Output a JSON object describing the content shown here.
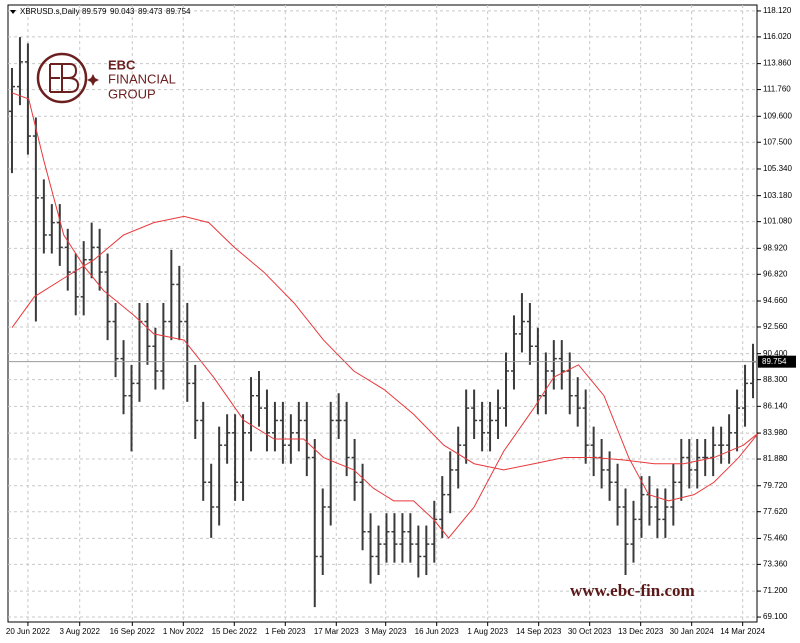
{
  "chart_data": {
    "type": "ohlc",
    "title": "XBRUSD.s,Daily",
    "header_values": [
      89.579,
      90.043,
      89.473,
      89.754
    ],
    "bar_color": "#3a3a3a",
    "open": [
      110,
      112,
      114,
      108,
      103,
      100,
      101,
      99,
      97,
      95,
      98,
      99,
      97,
      93,
      90,
      87,
      88,
      93,
      91,
      89,
      93,
      96,
      93,
      88,
      85,
      80,
      78,
      83,
      84,
      80,
      84,
      87,
      86,
      84,
      85,
      83,
      84,
      85,
      82,
      74,
      78,
      85,
      85,
      82,
      80,
      76,
      74,
      75,
      76,
      75,
      76,
      75,
      74,
      75,
      77,
      79,
      81,
      83,
      86,
      85,
      84,
      85,
      86,
      89,
      92,
      93,
      91,
      87,
      89,
      90,
      89,
      87,
      86,
      83,
      82,
      81,
      80,
      78,
      75,
      77,
      79,
      78,
      77,
      78,
      80,
      82,
      81,
      82,
      82,
      83,
      83,
      84,
      86,
      88
    ],
    "high": [
      113.5,
      116,
      115.5,
      109.5,
      104.5,
      102.5,
      102.5,
      100.5,
      98.5,
      99.5,
      101,
      100.5,
      98.5,
      94.5,
      91.5,
      89.5,
      94.5,
      94.5,
      92.5,
      94.5,
      98.8,
      97.5,
      94.5,
      89.5,
      86.5,
      81.5,
      84.5,
      85.5,
      85.5,
      85.5,
      88.5,
      89,
      87.5,
      86.5,
      86.5,
      85.5,
      86.5,
      86.5,
      83.5,
      79.5,
      86.5,
      87.2,
      86.5,
      83.5,
      81.5,
      77.5,
      76.5,
      77.5,
      77.5,
      77.5,
      77.5,
      76.5,
      76.5,
      78.5,
      80.5,
      82.5,
      84.5,
      87.5,
      87.5,
      86.5,
      86.5,
      87.5,
      90.5,
      93.5,
      95.3,
      94.5,
      92.5,
      90.5,
      91.5,
      91.5,
      90.5,
      88.5,
      87.5,
      84.5,
      83.5,
      82.5,
      81.5,
      79.5,
      78.5,
      80.5,
      80.5,
      79.5,
      79.5,
      81.5,
      83.5,
      83.5,
      83.5,
      83.5,
      84.5,
      84.5,
      85.5,
      87.5,
      89.5,
      91.2
    ],
    "low": [
      105,
      110.5,
      106.5,
      93,
      98.5,
      98.5,
      97.5,
      95.5,
      93.5,
      93.5,
      96.5,
      95.5,
      91.5,
      88.5,
      85.5,
      82.5,
      86.5,
      89.5,
      87.5,
      87.5,
      91.5,
      91.5,
      86.5,
      83.5,
      78.5,
      75.5,
      76.5,
      81.5,
      78.5,
      78.5,
      82.5,
      84.5,
      82.5,
      82.5,
      81.5,
      81.5,
      82.5,
      80.5,
      69.9,
      72.5,
      76.5,
      83.5,
      80.5,
      78.5,
      74.5,
      71.8,
      72.5,
      73.5,
      73.5,
      73.5,
      73.5,
      72.3,
      72.5,
      73.5,
      75.5,
      77.5,
      79.5,
      81.5,
      83.5,
      82.5,
      82.5,
      83.5,
      84.5,
      87.5,
      90.5,
      89.5,
      85.5,
      85.5,
      87.5,
      87.5,
      85.5,
      84.5,
      81.5,
      80.5,
      79.5,
      78.5,
      76.5,
      72.5,
      73.5,
      75.5,
      76.5,
      75.5,
      75.5,
      76.5,
      78.5,
      79.5,
      79.5,
      80.5,
      80.5,
      81.5,
      81.5,
      82.5,
      84.5,
      86.8
    ],
    "close": [
      112,
      114,
      108,
      103,
      100,
      101,
      99,
      97,
      95,
      98,
      99,
      97,
      93,
      90,
      87,
      88,
      93,
      91,
      89,
      93,
      96,
      93,
      88,
      85,
      80,
      78,
      83,
      84,
      80,
      84,
      87,
      86,
      84,
      85,
      83,
      84,
      85,
      82,
      74,
      78,
      85,
      85,
      82,
      80,
      76,
      74,
      75,
      76,
      75,
      76,
      75,
      74,
      75,
      77,
      79,
      81,
      83,
      86,
      85,
      84,
      85,
      86,
      89,
      92,
      93,
      91,
      87,
      89,
      90,
      89,
      87,
      86,
      83,
      82,
      81,
      80,
      78,
      75,
      77,
      79,
      78,
      77,
      78,
      80,
      82,
      81,
      82,
      82,
      83,
      83,
      84,
      86,
      88,
      89.754
    ],
    "moving_averages": [
      {
        "color": "#e8393c",
        "x": [
          0,
          2.1,
          4,
          6.5,
          9,
          11.5,
          15.3,
          17.8,
          21.6,
          25.3,
          29.1,
          32.9,
          36.6,
          39.1,
          42.9,
          45.4,
          47.9,
          50.4,
          52.9,
          54.8,
          58,
          61.7,
          65.5,
          68,
          71.1,
          74.3,
          77.4,
          79.9,
          82.4,
          85.6,
          88.1,
          91.2,
          93.7
        ],
        "values": [
          111.5,
          111,
          106,
          100,
          97.5,
          95.5,
          93.5,
          92,
          91.5,
          88.5,
          85,
          83.5,
          83.5,
          82,
          81,
          79.5,
          78.5,
          78.5,
          77,
          75.5,
          78,
          82.5,
          86,
          88.5,
          89.5,
          87,
          82,
          79,
          78.5,
          79,
          80,
          82,
          84
        ]
      },
      {
        "color": "#e8393c",
        "x": [
          0,
          2.8,
          6.5,
          10.3,
          14,
          17.8,
          21.6,
          24.7,
          27.9,
          31.6,
          35.4,
          39.1,
          42.9,
          46.7,
          50.4,
          54.2,
          58,
          61.7,
          65.5,
          69.3,
          73,
          76.8,
          80.6,
          84.3,
          88.1,
          91.8,
          93.7
        ],
        "values": [
          92.5,
          95,
          96.5,
          98,
          100,
          101,
          101.5,
          101,
          99,
          97,
          94.5,
          91.5,
          89,
          87.5,
          85.5,
          83,
          81.5,
          81,
          81.5,
          82,
          82,
          81.8,
          81.5,
          81.5,
          82,
          83,
          84
        ]
      }
    ],
    "xlim": [
      0,
      94
    ],
    "xticks": [
      {
        "value": 2.5,
        "label": "20 Jun 2022"
      },
      {
        "value": 9.0,
        "label": "3 Aug 2022"
      },
      {
        "value": 15.6,
        "label": "16 Sep 2022"
      },
      {
        "value": 22.0,
        "label": "1 Nov 2022"
      },
      {
        "value": 28.4,
        "label": "15 Dec 2022"
      },
      {
        "value": 34.8,
        "label": "1 Feb 2023"
      },
      {
        "value": 41.2,
        "label": "17 Mar 2023"
      },
      {
        "value": 47.4,
        "label": "3 May 2023"
      },
      {
        "value": 53.8,
        "label": "16 Jun 2023"
      },
      {
        "value": 60.2,
        "label": "1 Aug 2023"
      },
      {
        "value": 66.6,
        "label": "14 Sep 2023"
      },
      {
        "value": 73.0,
        "label": "30 Oct 2023"
      },
      {
        "value": 79.4,
        "label": "13 Dec 2023"
      },
      {
        "value": 85.8,
        "label": "30 Jan 2024"
      },
      {
        "value": 92.2,
        "label": "14 Mar 2024"
      }
    ],
    "ylim": [
      68.7,
      118.6
    ],
    "yticks": [
      {
        "value": 118.12,
        "label": "118.120"
      },
      {
        "value": 116.02,
        "label": "116.020"
      },
      {
        "value": 113.86,
        "label": "113.860"
      },
      {
        "value": 111.76,
        "label": "111.760"
      },
      {
        "value": 109.6,
        "label": "109.600"
      },
      {
        "value": 107.5,
        "label": "107.500"
      },
      {
        "value": 105.34,
        "label": "105.340"
      },
      {
        "value": 103.18,
        "label": "103.180"
      },
      {
        "value": 101.08,
        "label": "101.080"
      },
      {
        "value": 98.92,
        "label": "98.920"
      },
      {
        "value": 96.82,
        "label": "96.820"
      },
      {
        "value": 94.66,
        "label": "94.660"
      },
      {
        "value": 92.56,
        "label": "92.560"
      },
      {
        "value": 90.4,
        "label": "90.400"
      },
      {
        "value": 88.3,
        "label": "88.300"
      },
      {
        "value": 86.14,
        "label": "86.140"
      },
      {
        "value": 83.98,
        "label": "83.980"
      },
      {
        "value": 81.88,
        "label": "81.880"
      },
      {
        "value": 79.72,
        "label": "79.720"
      },
      {
        "value": 77.62,
        "label": "77.620"
      },
      {
        "value": 75.46,
        "label": "75.460"
      },
      {
        "value": 73.36,
        "label": "73.360"
      },
      {
        "value": 71.2,
        "label": "71.200"
      },
      {
        "value": 69.1,
        "label": "69.100"
      }
    ],
    "last_price": {
      "value": 89.754,
      "label": "89.754"
    },
    "grid": true
  },
  "watermark": {
    "brand": "EBC",
    "line1": "FINANCIAL",
    "line2": "GROUP",
    "website": "www.ebc-fin.com"
  }
}
